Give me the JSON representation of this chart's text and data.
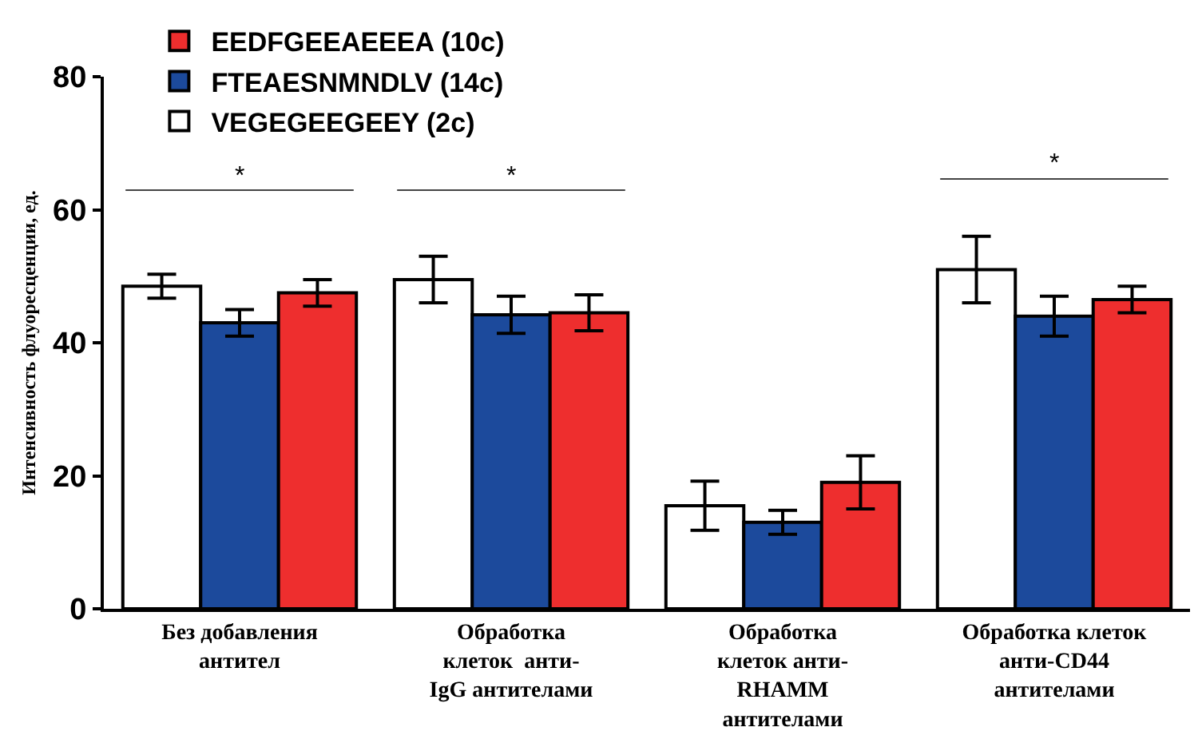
{
  "chart_data": {
    "type": "bar",
    "ylabel": "Интенсивность флуоресценции, ед.",
    "categories": [
      "Без добавления\nантител",
      "Обработка\nклеток  анти-\nIgG антителами",
      "Обработка\nклеток анти-\nRHAMM\nантителами",
      "Обработка клеток\nанти-CD44\nантителами"
    ],
    "series": [
      {
        "name": "VEGEGEEGEEY (2c)",
        "color": "#ffffff",
        "values": [
          48.5,
          49.5,
          15.5,
          51
        ],
        "errors": [
          1.8,
          3.5,
          3.7,
          5
        ]
      },
      {
        "name": "FTEAESNMNDLV (14c)",
        "color": "#1c4a9c",
        "values": [
          43,
          44.2,
          13,
          44
        ],
        "errors": [
          2,
          2.8,
          1.8,
          3
        ]
      },
      {
        "name": "EEDFGEEAEEEA (10c)",
        "color": "#ee2e2e",
        "values": [
          47.5,
          44.5,
          19,
          46.5
        ],
        "errors": [
          2,
          2.7,
          4,
          2
        ]
      }
    ],
    "ylim": [
      0,
      80
    ],
    "yticks": [
      0,
      20,
      40,
      60,
      80
    ],
    "grid": false,
    "legend": "top",
    "annotations": [
      "*",
      "*",
      "*"
    ]
  }
}
